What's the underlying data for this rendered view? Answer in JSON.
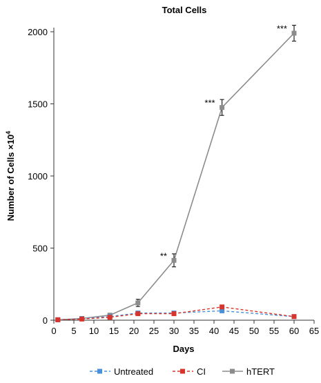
{
  "chart_data": {
    "type": "line",
    "title": "Total Cells",
    "xlabel": "Days",
    "ylabel": "Number of Cells ×10",
    "ylabel_sup": "4",
    "xlim": [
      0,
      65
    ],
    "ylim": [
      0,
      2000
    ],
    "xticks": [
      0,
      5,
      10,
      15,
      20,
      25,
      30,
      35,
      40,
      45,
      50,
      55,
      60,
      65
    ],
    "yticks": [
      0,
      500,
      1000,
      1500,
      2000
    ],
    "grid": false,
    "legend_position": "bottom",
    "series": [
      {
        "name": "Untreated",
        "color": "#4a90d9",
        "line_style": "dashed",
        "marker": "square",
        "x": [
          1,
          7,
          14,
          21,
          30,
          42,
          60
        ],
        "y": [
          3,
          10,
          25,
          50,
          50,
          65,
          25
        ]
      },
      {
        "name": "CI",
        "color": "#d9342b",
        "line_style": "dashed",
        "marker": "square",
        "x": [
          1,
          7,
          14,
          21,
          30,
          42,
          60
        ],
        "y": [
          3,
          8,
          20,
          45,
          45,
          92,
          25
        ]
      },
      {
        "name": "hTERT",
        "color": "#8c8c8c",
        "line_style": "solid",
        "marker": "square",
        "x": [
          1,
          7,
          14,
          21,
          30,
          42,
          60
        ],
        "y": [
          3,
          12,
          35,
          120,
          415,
          1475,
          1990
        ],
        "error": [
          0,
          0,
          5,
          25,
          45,
          55,
          55
        ]
      }
    ],
    "annotations": [
      {
        "text": "**",
        "x": 30,
        "y": 415
      },
      {
        "text": "***",
        "x": 42,
        "y": 1475
      },
      {
        "text": "***",
        "x": 60,
        "y": 1990
      }
    ]
  }
}
